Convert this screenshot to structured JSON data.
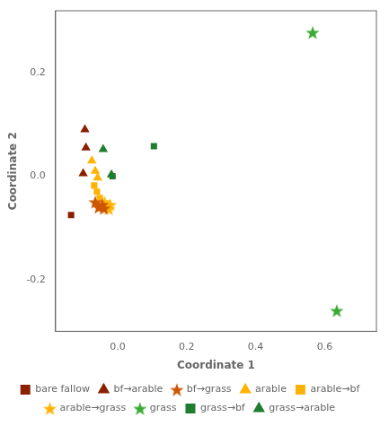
{
  "chart_data": {
    "type": "scatter",
    "x_label": "Coordinate 1",
    "y_label": "Coordinate 2",
    "xlim": [
      -0.18,
      0.75
    ],
    "ylim": [
      -0.3,
      0.32
    ],
    "xticks": [
      {
        "value": 0.0,
        "label": "0.0"
      },
      0.2,
      0.4,
      0.6
    ],
    "yticks": [
      -0.2,
      {
        "value": 0.0,
        "label": "0.0"
      },
      0.2
    ],
    "grid": false,
    "legend": "bottom",
    "series": [
      {
        "name": "bare fallow",
        "marker": "square",
        "color": "#8B2000",
        "x": [
          -0.135
        ],
        "y": [
          -0.075
        ]
      },
      {
        "name": "bf→arable",
        "marker": "triangle",
        "color": "#8B2000",
        "x": [
          -0.095,
          -0.092,
          -0.1
        ],
        "y": [
          0.09,
          0.055,
          0.005
        ]
      },
      {
        "name": "bf→grass",
        "marker": "star",
        "color": "#CC5500",
        "x": [
          -0.065,
          -0.055,
          -0.045,
          -0.04
        ],
        "y": [
          -0.05,
          -0.06,
          -0.055,
          -0.062
        ]
      },
      {
        "name": "arable",
        "marker": "triangle",
        "color": "#FFB300",
        "x": [
          -0.075,
          -0.065,
          -0.058
        ],
        "y": [
          0.03,
          0.01,
          -0.003
        ]
      },
      {
        "name": "arable→bf",
        "marker": "square",
        "color": "#FFB300",
        "x": [
          -0.068,
          -0.06,
          -0.052
        ],
        "y": [
          -0.018,
          -0.03,
          -0.042
        ]
      },
      {
        "name": "arable→grass",
        "marker": "star",
        "color": "#FFB300",
        "x": [
          -0.038,
          -0.03,
          -0.022,
          -0.026
        ],
        "y": [
          -0.05,
          -0.058,
          -0.055,
          -0.063
        ]
      },
      {
        "name": "grass",
        "marker": "star",
        "color": "#3AAA35",
        "x": [
          0.565,
          0.635
        ],
        "y": [
          0.278,
          -0.26
        ]
      },
      {
        "name": "grass→bf",
        "marker": "square",
        "color": "#1E7D2E",
        "x": [
          0.105,
          -0.015
        ],
        "y": [
          0.058,
          0.0
        ]
      },
      {
        "name": "grass→arable",
        "marker": "triangle",
        "color": "#1E7D2E",
        "x": [
          -0.042,
          -0.018
        ],
        "y": [
          0.052,
          0.003
        ]
      }
    ]
  }
}
